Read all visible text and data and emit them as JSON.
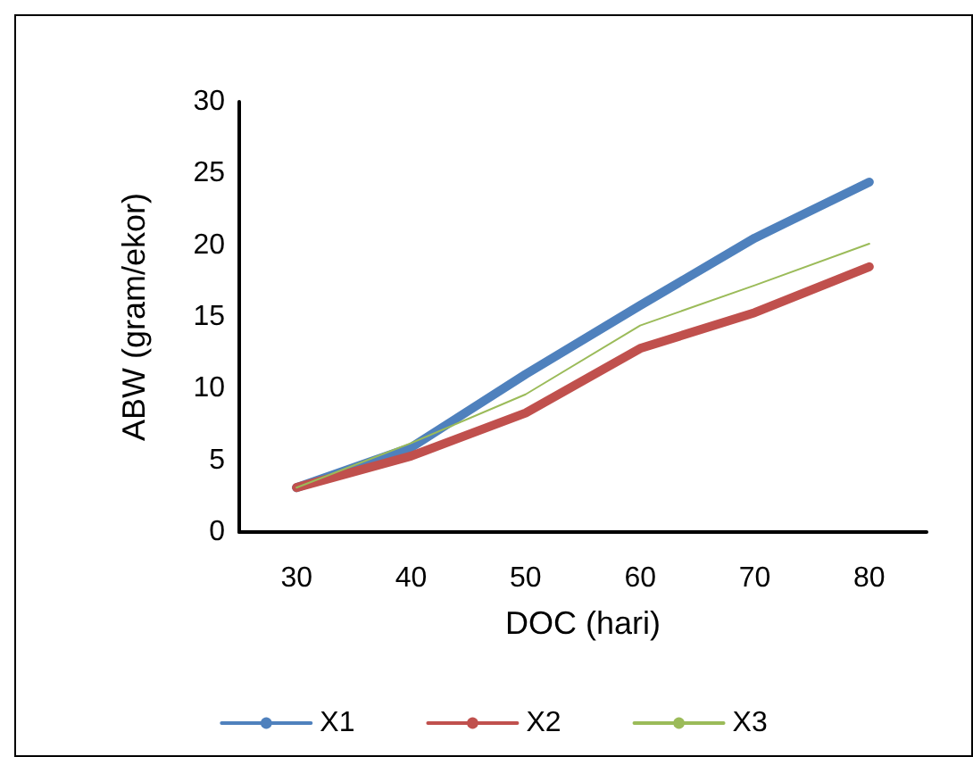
{
  "chart_data": {
    "type": "line",
    "xlabel": "DOC (hari)",
    "ylabel": "ABW (gram/ekor)",
    "categories": [
      "30",
      "40",
      "50",
      "60",
      "70",
      "80"
    ],
    "series": [
      {
        "name": "X1",
        "color": "#4f81bd",
        "values": [
          3.1,
          5.9,
          11.0,
          15.8,
          20.5,
          24.4
        ]
      },
      {
        "name": "X2",
        "color": "#c0504d",
        "values": [
          3.1,
          5.3,
          8.3,
          12.8,
          15.3,
          18.5
        ]
      },
      {
        "name": "X3",
        "color": "#9bbb59",
        "values": [
          3.1,
          6.2,
          9.6,
          14.4,
          17.2,
          20.1
        ]
      }
    ],
    "ylim": [
      0,
      30
    ],
    "yticks": [
      0,
      5,
      10,
      15,
      20,
      25,
      30
    ],
    "grid": false,
    "legend": "bottom",
    "marker": "none",
    "line_style": "solid"
  }
}
